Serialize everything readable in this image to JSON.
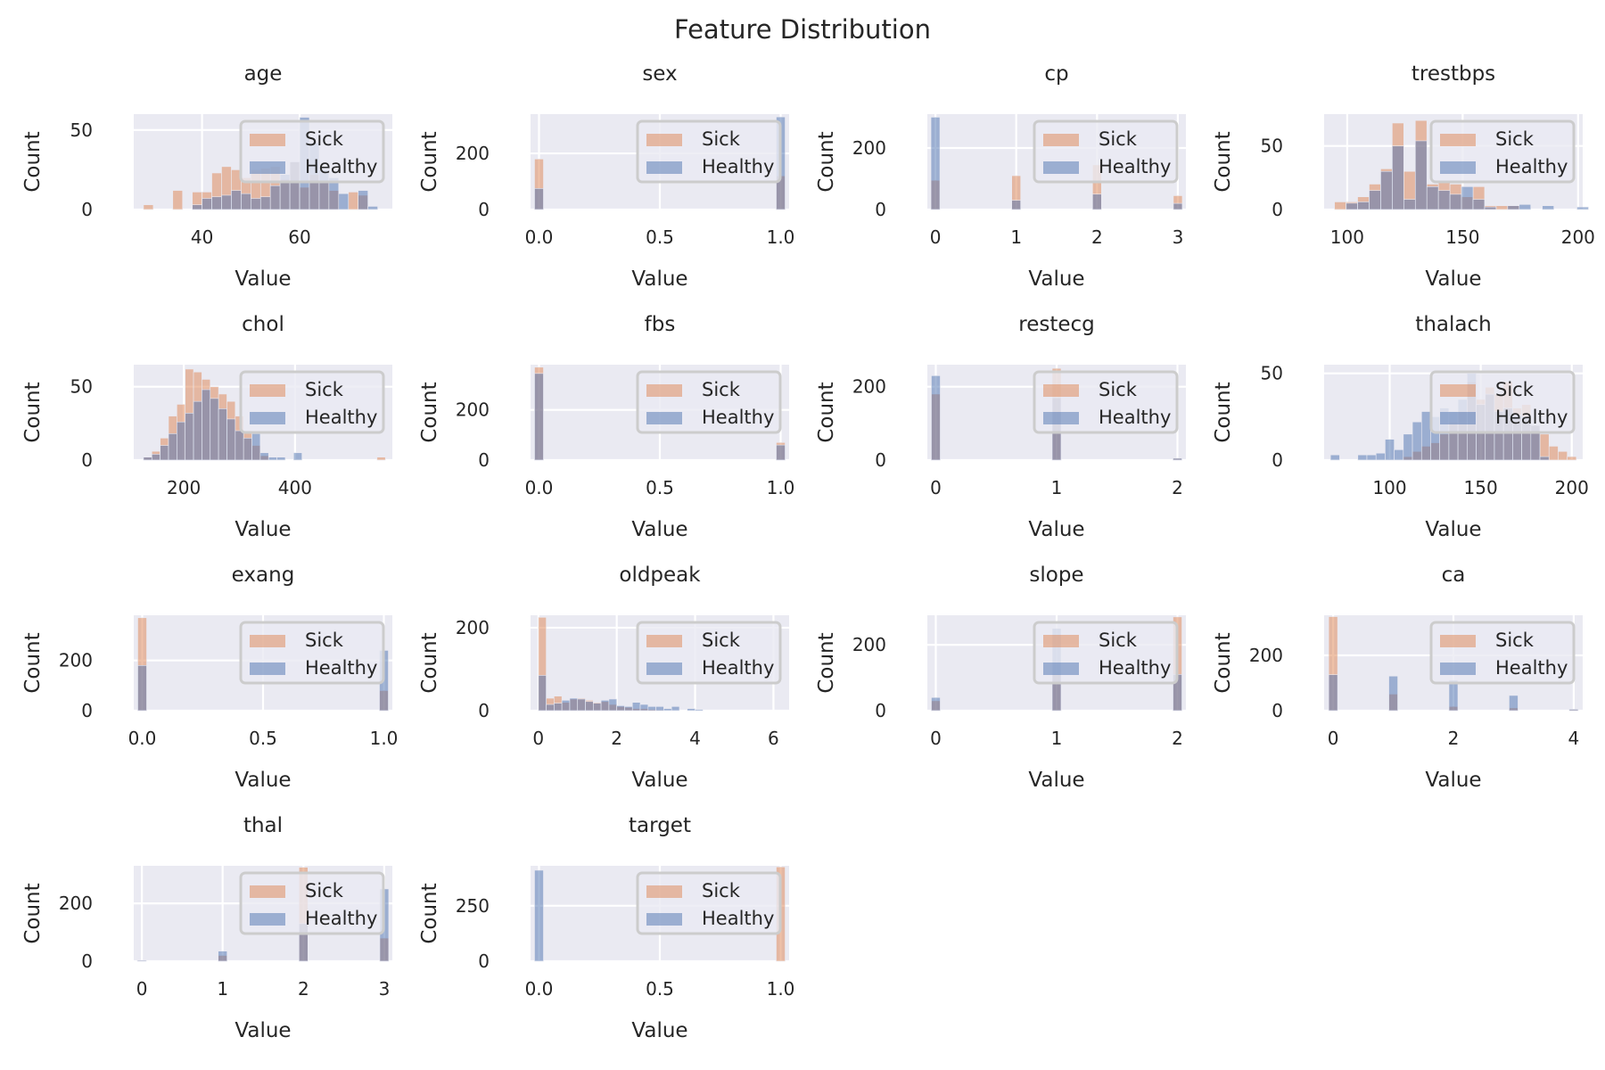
{
  "suptitle": "Feature Distribution",
  "colors": {
    "sick": "#dd8452",
    "healthy": "#4c72b0",
    "face": "#eaeaf2",
    "grid": "#ffffff"
  },
  "legend": {
    "sick": "Sick",
    "healthy": "Healthy",
    "placement": "upper right"
  },
  "chart_data": [
    {
      "type": "bar",
      "title": "age",
      "xlabel": "Value",
      "ylabel": "Count",
      "xlim": [
        26,
        79
      ],
      "ylim": [
        0,
        60
      ],
      "xticks": [
        40,
        60
      ],
      "xtick_labels": [
        "40",
        "60"
      ],
      "yticks": [
        0,
        50
      ],
      "ytick_labels": [
        "0",
        "50"
      ],
      "bins": [
        29,
        31,
        33,
        35,
        37,
        39,
        41,
        43,
        45,
        47,
        49,
        51,
        53,
        55,
        57,
        59,
        61,
        63,
        65,
        67,
        69,
        71,
        73,
        75
      ],
      "series": [
        {
          "name": "Sick",
          "values": [
            3,
            0,
            0,
            12,
            0,
            11,
            11,
            23,
            27,
            25,
            20,
            25,
            26,
            27,
            19,
            30,
            14,
            22,
            18,
            12,
            0,
            11,
            9,
            0
          ]
        },
        {
          "name": "Healthy",
          "values": [
            0,
            0,
            0,
            0,
            0,
            3,
            7,
            8,
            9,
            12,
            10,
            7,
            8,
            15,
            22,
            30,
            58,
            42,
            25,
            20,
            10,
            0,
            12,
            2
          ]
        }
      ]
    },
    {
      "type": "bar",
      "title": "sex",
      "xlabel": "Value",
      "ylabel": "Count",
      "xlim": [
        -0.035,
        1.035
      ],
      "ylim": [
        0,
        340
      ],
      "xticks": [
        0,
        0.5,
        1
      ],
      "xtick_labels": [
        "0.0",
        "0.5",
        "1.0"
      ],
      "yticks": [
        0,
        200
      ],
      "ytick_labels": [
        "0",
        "200"
      ],
      "bins": [
        0,
        1
      ],
      "series": [
        {
          "name": "Sick",
          "values": [
            180,
            120
          ]
        },
        {
          "name": "Healthy",
          "values": [
            75,
            330
          ]
        }
      ]
    },
    {
      "type": "bar",
      "title": "cp",
      "xlabel": "Value",
      "ylabel": "Count",
      "xlim": [
        -0.1,
        3.1
      ],
      "ylim": [
        0,
        310
      ],
      "xticks": [
        0,
        1,
        2,
        3
      ],
      "xtick_labels": [
        "0",
        "1",
        "2",
        "3"
      ],
      "yticks": [
        0,
        200
      ],
      "ytick_labels": [
        "0",
        "200"
      ],
      "bins": [
        0,
        1,
        2,
        3
      ],
      "series": [
        {
          "name": "Sick",
          "values": [
            95,
            110,
            145,
            45
          ]
        },
        {
          "name": "Healthy",
          "values": [
            300,
            30,
            50,
            20
          ]
        }
      ]
    },
    {
      "type": "bar",
      "title": "trestbps",
      "xlabel": "Value",
      "ylabel": "Count",
      "xlim": [
        90,
        202
      ],
      "ylim": [
        0,
        75
      ],
      "xticks": [
        100,
        150,
        200
      ],
      "xtick_labels": [
        "100",
        "150",
        "200"
      ],
      "yticks": [
        0,
        50
      ],
      "ytick_labels": [
        "0",
        "50"
      ],
      "bins": [
        97,
        102,
        107,
        112,
        117,
        122,
        127,
        132,
        137,
        142,
        147,
        152,
        157,
        162,
        167,
        172,
        177,
        182,
        187,
        192,
        197,
        202
      ],
      "series": [
        {
          "name": "Sick",
          "values": [
            6,
            6,
            10,
            20,
            32,
            68,
            30,
            70,
            20,
            22,
            20,
            10,
            18,
            3,
            3,
            3,
            0,
            0,
            0,
            0,
            0,
            0
          ]
        },
        {
          "name": "Healthy",
          "values": [
            0,
            5,
            6,
            15,
            30,
            50,
            8,
            54,
            18,
            15,
            12,
            18,
            8,
            2,
            0,
            3,
            4,
            0,
            3,
            0,
            0,
            2
          ]
        }
      ]
    },
    {
      "type": "bar",
      "title": "chol",
      "xlabel": "Value",
      "ylabel": "Count",
      "xlim": [
        110,
        575
      ],
      "ylim": [
        0,
        65
      ],
      "xticks": [
        200,
        400
      ],
      "xtick_labels": [
        "200",
        "400"
      ],
      "yticks": [
        0,
        50
      ],
      "ytick_labels": [
        "0",
        "50"
      ],
      "bins": [
        135,
        150,
        165,
        180,
        195,
        210,
        225,
        240,
        255,
        270,
        285,
        300,
        315,
        330,
        345,
        360,
        375,
        390,
        405,
        420,
        435,
        450,
        465,
        480,
        495,
        510,
        525,
        540,
        555,
        570
      ],
      "series": [
        {
          "name": "Sick",
          "values": [
            2,
            6,
            15,
            30,
            38,
            62,
            60,
            55,
            50,
            45,
            40,
            30,
            20,
            10,
            3,
            0,
            0,
            0,
            0,
            0,
            0,
            0,
            0,
            0,
            0,
            0,
            0,
            0,
            2,
            0
          ]
        },
        {
          "name": "Healthy",
          "values": [
            2,
            4,
            10,
            18,
            26,
            32,
            40,
            48,
            42,
            35,
            28,
            20,
            15,
            18,
            5,
            2,
            2,
            0,
            5,
            0,
            0,
            0,
            0,
            0,
            0,
            0,
            0,
            0,
            0,
            0
          ]
        }
      ]
    },
    {
      "type": "bar",
      "title": "fbs",
      "xlabel": "Value",
      "ylabel": "Count",
      "xlim": [
        -0.035,
        1.035
      ],
      "ylim": [
        0,
        380
      ],
      "xticks": [
        0,
        0.5,
        1
      ],
      "xtick_labels": [
        "0.0",
        "0.5",
        "1.0"
      ],
      "yticks": [
        0,
        200
      ],
      "ytick_labels": [
        "0",
        "200"
      ],
      "bins": [
        0,
        1
      ],
      "series": [
        {
          "name": "Sick",
          "values": [
            370,
            70
          ]
        },
        {
          "name": "Healthy",
          "values": [
            345,
            60
          ]
        }
      ]
    },
    {
      "type": "bar",
      "title": "restecg",
      "xlabel": "Value",
      "ylabel": "Count",
      "xlim": [
        -0.07,
        2.07
      ],
      "ylim": [
        0,
        260
      ],
      "xticks": [
        0,
        1,
        2
      ],
      "xtick_labels": [
        "0",
        "1",
        "2"
      ],
      "yticks": [
        0,
        200
      ],
      "ytick_labels": [
        "0",
        "200"
      ],
      "bins": [
        0,
        1,
        2
      ],
      "series": [
        {
          "name": "Sick",
          "values": [
            180,
            250,
            5
          ]
        },
        {
          "name": "Healthy",
          "values": [
            230,
            170,
            5
          ]
        }
      ]
    },
    {
      "type": "bar",
      "title": "thalach",
      "xlabel": "Value",
      "ylabel": "Count",
      "xlim": [
        64,
        206
      ],
      "ylim": [
        0,
        55
      ],
      "xticks": [
        100,
        150,
        200
      ],
      "xtick_labels": [
        "100",
        "150",
        "200"
      ],
      "yticks": [
        0,
        50
      ],
      "ytick_labels": [
        "0",
        "50"
      ],
      "bins": [
        70,
        75,
        80,
        85,
        90,
        95,
        100,
        105,
        110,
        115,
        120,
        125,
        130,
        135,
        140,
        145,
        150,
        155,
        160,
        165,
        170,
        175,
        180,
        185,
        190,
        195,
        200
      ],
      "series": [
        {
          "name": "Sick",
          "values": [
            0,
            0,
            0,
            0,
            0,
            0,
            0,
            0,
            2,
            5,
            8,
            10,
            15,
            22,
            28,
            45,
            35,
            42,
            38,
            45,
            30,
            32,
            20,
            15,
            8,
            5,
            2
          ]
        },
        {
          "name": "Healthy",
          "values": [
            3,
            0,
            0,
            3,
            3,
            4,
            12,
            6,
            15,
            22,
            28,
            25,
            30,
            28,
            35,
            50,
            32,
            38,
            28,
            30,
            26,
            25,
            20,
            2,
            0,
            0,
            0
          ]
        }
      ]
    },
    {
      "type": "bar",
      "title": "exang",
      "xlabel": "Value",
      "ylabel": "Count",
      "xlim": [
        -0.035,
        1.035
      ],
      "ylim": [
        0,
        380
      ],
      "xticks": [
        0,
        0.5,
        1
      ],
      "xtick_labels": [
        "0.0",
        "0.5",
        "1.0"
      ],
      "yticks": [
        0,
        200
      ],
      "ytick_labels": [
        "0",
        "200"
      ],
      "bins": [
        0,
        1
      ],
      "series": [
        {
          "name": "Sick",
          "values": [
            370,
            80
          ]
        },
        {
          "name": "Healthy",
          "values": [
            180,
            240
          ]
        }
      ]
    },
    {
      "type": "bar",
      "title": "oldpeak",
      "xlabel": "Value",
      "ylabel": "Count",
      "xlim": [
        -0.2,
        6.4
      ],
      "ylim": [
        0,
        230
      ],
      "xticks": [
        0,
        2,
        4,
        6
      ],
      "xtick_labels": [
        "0",
        "2",
        "4",
        "6"
      ],
      "yticks": [
        0,
        200
      ],
      "ytick_labels": [
        "0",
        "200"
      ],
      "bins": [
        0.1,
        0.3,
        0.5,
        0.7,
        0.9,
        1.1,
        1.3,
        1.5,
        1.7,
        1.9,
        2.1,
        2.3,
        2.5,
        2.7,
        2.9,
        3.1,
        3.3,
        3.5,
        3.7,
        3.9,
        4.1
      ],
      "series": [
        {
          "name": "Sick",
          "values": [
            225,
            30,
            35,
            20,
            28,
            30,
            25,
            20,
            22,
            15,
            10,
            8,
            5,
            5,
            3,
            2,
            0,
            0,
            0,
            0,
            0
          ]
        },
        {
          "name": "Healthy",
          "values": [
            85,
            15,
            18,
            25,
            30,
            28,
            22,
            18,
            25,
            28,
            12,
            10,
            20,
            15,
            10,
            10,
            5,
            10,
            0,
            5,
            3
          ]
        }
      ]
    },
    {
      "type": "bar",
      "title": "slope",
      "xlabel": "Value",
      "ylabel": "Count",
      "xlim": [
        -0.07,
        2.07
      ],
      "ylim": [
        0,
        290
      ],
      "xticks": [
        0,
        1,
        2
      ],
      "xtick_labels": [
        "0",
        "1",
        "2"
      ],
      "yticks": [
        0,
        200
      ],
      "ytick_labels": [
        "0",
        "200"
      ],
      "bins": [
        0,
        1,
        2
      ],
      "series": [
        {
          "name": "Sick",
          "values": [
            30,
            110,
            285
          ]
        },
        {
          "name": "Healthy",
          "values": [
            40,
            250,
            110
          ]
        }
      ]
    },
    {
      "type": "bar",
      "title": "ca",
      "xlabel": "Value",
      "ylabel": "Count",
      "xlim": [
        -0.15,
        4.15
      ],
      "ylim": [
        0,
        345
      ],
      "xticks": [
        0,
        2,
        4
      ],
      "xtick_labels": [
        "0",
        "2",
        "4"
      ],
      "yticks": [
        0,
        200
      ],
      "ytick_labels": [
        "0",
        "200"
      ],
      "bins": [
        0,
        1,
        2,
        3,
        4
      ],
      "series": [
        {
          "name": "Sick",
          "values": [
            340,
            60,
            15,
            10,
            5
          ]
        },
        {
          "name": "Healthy",
          "values": [
            130,
            125,
            110,
            55,
            5
          ]
        }
      ]
    },
    {
      "type": "bar",
      "title": "thal",
      "xlabel": "Value",
      "ylabel": "Count",
      "xlim": [
        -0.1,
        3.1
      ],
      "ylim": [
        0,
        330
      ],
      "xticks": [
        0,
        1,
        2,
        3
      ],
      "xtick_labels": [
        "0",
        "1",
        "2",
        "3"
      ],
      "yticks": [
        0,
        200
      ],
      "ytick_labels": [
        "0",
        "200"
      ],
      "bins": [
        0,
        1,
        2,
        3
      ],
      "series": [
        {
          "name": "Sick",
          "values": [
            3,
            20,
            325,
            80
          ]
        },
        {
          "name": "Healthy",
          "values": [
            3,
            35,
            130,
            250
          ]
        }
      ]
    },
    {
      "type": "bar",
      "title": "target",
      "xlabel": "Value",
      "ylabel": "Count",
      "xlim": [
        -0.035,
        1.035
      ],
      "ylim": [
        0,
        430
      ],
      "xticks": [
        0,
        0.5,
        1
      ],
      "xtick_labels": [
        "0.0",
        "0.5",
        "1.0"
      ],
      "yticks": [
        0,
        250
      ],
      "ytick_labels": [
        "0",
        "250"
      ],
      "bins": [
        0,
        1
      ],
      "series": [
        {
          "name": "Sick",
          "values": [
            0,
            425
          ]
        },
        {
          "name": "Healthy",
          "values": [
            410,
            0
          ]
        }
      ]
    }
  ]
}
